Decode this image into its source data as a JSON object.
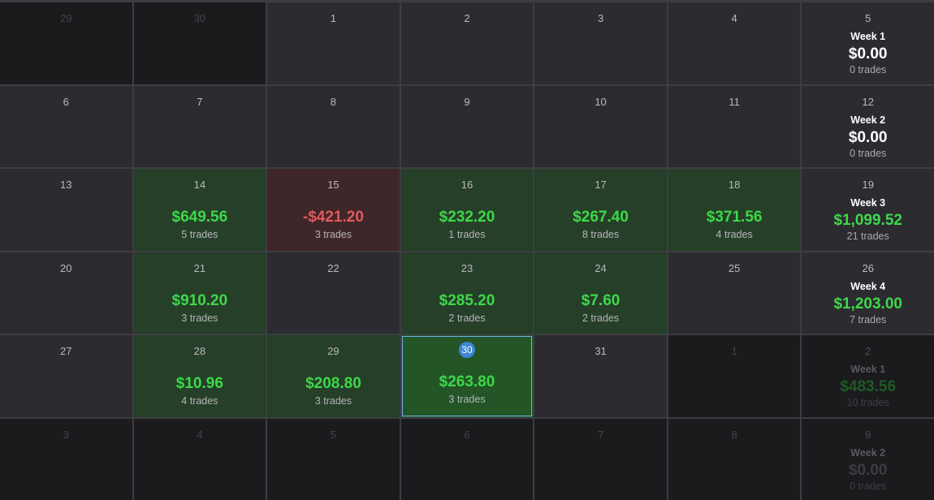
{
  "colors": {
    "win_bg": "#263f28",
    "loss_bg": "#3f2628",
    "positive": "#3dd84a",
    "negative": "#e05a5e",
    "today_badge": "#3d86d6"
  },
  "calendar": {
    "rows": [
      {
        "days": [
          {
            "day": "29",
            "other": true
          },
          {
            "day": "30",
            "other": true
          },
          {
            "day": "1"
          },
          {
            "day": "2"
          },
          {
            "day": "3"
          },
          {
            "day": "4"
          }
        ],
        "week": {
          "day": "5",
          "label": "Week 1",
          "amount": "$0.00",
          "trades": "0 trades",
          "status": "zero"
        }
      },
      {
        "days": [
          {
            "day": "6"
          },
          {
            "day": "7"
          },
          {
            "day": "8"
          },
          {
            "day": "9"
          },
          {
            "day": "10"
          },
          {
            "day": "11"
          }
        ],
        "week": {
          "day": "12",
          "label": "Week 2",
          "amount": "$0.00",
          "trades": "0 trades",
          "status": "zero"
        }
      },
      {
        "days": [
          {
            "day": "13"
          },
          {
            "day": "14",
            "pnl": "$649.56",
            "trades": "5 trades",
            "status": "win"
          },
          {
            "day": "15",
            "pnl": "-$421.20",
            "trades": "3 trades",
            "status": "loss"
          },
          {
            "day": "16",
            "pnl": "$232.20",
            "trades": "1 trades",
            "status": "win"
          },
          {
            "day": "17",
            "pnl": "$267.40",
            "trades": "8 trades",
            "status": "win"
          },
          {
            "day": "18",
            "pnl": "$371.56",
            "trades": "4 trades",
            "status": "win"
          }
        ],
        "week": {
          "day": "19",
          "label": "Week 3",
          "amount": "$1,099.52",
          "trades": "21 trades",
          "status": "win"
        }
      },
      {
        "days": [
          {
            "day": "20"
          },
          {
            "day": "21",
            "pnl": "$910.20",
            "trades": "3 trades",
            "status": "win"
          },
          {
            "day": "22"
          },
          {
            "day": "23",
            "pnl": "$285.20",
            "trades": "2 trades",
            "status": "win"
          },
          {
            "day": "24",
            "pnl": "$7.60",
            "trades": "2 trades",
            "status": "win"
          },
          {
            "day": "25"
          }
        ],
        "week": {
          "day": "26",
          "label": "Week 4",
          "amount": "$1,203.00",
          "trades": "7 trades",
          "status": "win"
        }
      },
      {
        "days": [
          {
            "day": "27"
          },
          {
            "day": "28",
            "pnl": "$10.96",
            "trades": "4 trades",
            "status": "win"
          },
          {
            "day": "29",
            "pnl": "$208.80",
            "trades": "3 trades",
            "status": "win"
          },
          {
            "day": "30",
            "pnl": "$263.80",
            "trades": "3 trades",
            "status": "win",
            "today": true
          },
          {
            "day": "31"
          },
          {
            "day": "1",
            "other": true
          }
        ],
        "week": {
          "day": "2",
          "label": "Week 1",
          "amount": "$483.56",
          "trades": "10 trades",
          "status": "win",
          "other": true
        }
      },
      {
        "days": [
          {
            "day": "3",
            "other": true
          },
          {
            "day": "4",
            "other": true
          },
          {
            "day": "5",
            "other": true
          },
          {
            "day": "6",
            "other": true
          },
          {
            "day": "7",
            "other": true
          },
          {
            "day": "8",
            "other": true
          }
        ],
        "week": {
          "day": "9",
          "label": "Week 2",
          "amount": "$0.00",
          "trades": "0 trades",
          "status": "zero",
          "other": true
        }
      }
    ]
  }
}
